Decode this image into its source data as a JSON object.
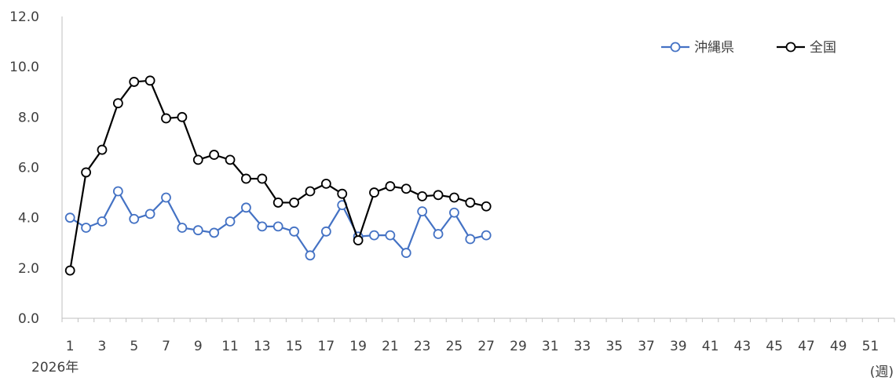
{
  "chart_data": {
    "type": "line",
    "title": "",
    "xlabel": "(週)",
    "ylabel": "",
    "year_label": "2026年",
    "ylim": [
      0,
      12
    ],
    "y_ticks": [
      "0.0",
      "2.0",
      "4.0",
      "6.0",
      "8.0",
      "10.0",
      "12.0"
    ],
    "x_range": [
      1,
      52
    ],
    "x_tick_labels": [
      "1",
      "3",
      "5",
      "7",
      "9",
      "11",
      "13",
      "15",
      "17",
      "19",
      "21",
      "23",
      "25",
      "27",
      "29",
      "31",
      "33",
      "35",
      "37",
      "39",
      "41",
      "43",
      "45",
      "47",
      "49",
      "51"
    ],
    "grid": false,
    "legend_position": "top-right",
    "series": [
      {
        "name": "沖縄県",
        "color": "#4472c4",
        "x": [
          1,
          2,
          3,
          4,
          5,
          6,
          7,
          8,
          9,
          10,
          11,
          12,
          13,
          14,
          15,
          16,
          17,
          18,
          19,
          20,
          21,
          22,
          23,
          24,
          25,
          26,
          27
        ],
        "values": [
          4.0,
          3.6,
          3.85,
          5.05,
          3.95,
          4.15,
          4.8,
          3.6,
          3.5,
          3.4,
          3.85,
          4.4,
          3.65,
          3.65,
          3.45,
          2.5,
          3.45,
          4.5,
          3.25,
          3.3,
          3.3,
          2.6,
          4.25,
          3.35,
          4.2,
          3.15,
          3.3
        ]
      },
      {
        "name": "全国",
        "color": "#000000",
        "x": [
          1,
          2,
          3,
          4,
          5,
          6,
          7,
          8,
          9,
          10,
          11,
          12,
          13,
          14,
          15,
          16,
          17,
          18,
          19,
          20,
          21,
          22,
          23,
          24,
          25,
          26,
          27
        ],
        "values": [
          1.9,
          5.8,
          6.7,
          8.55,
          9.4,
          9.45,
          7.95,
          8.0,
          6.3,
          6.5,
          6.3,
          5.55,
          5.55,
          4.6,
          4.6,
          5.05,
          5.35,
          4.95,
          3.1,
          5.0,
          5.25,
          5.15,
          4.85,
          4.9,
          4.8,
          4.6,
          4.45
        ]
      }
    ]
  }
}
